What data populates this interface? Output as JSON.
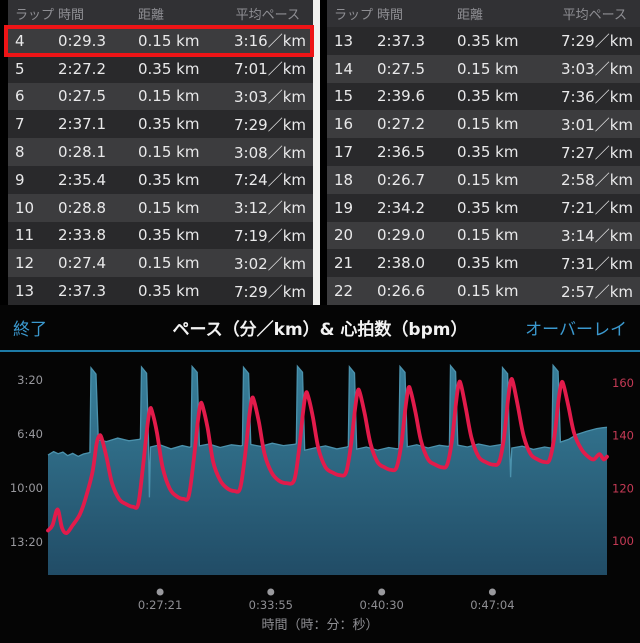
{
  "colors": {
    "accent_blue": "#3b99cf",
    "header_underline": "#1d7aa6",
    "highlight_red": "#ee1416",
    "area_top": "#38809b",
    "area_bottom": "#214c66",
    "area_edge": "#4b92ad",
    "hr_line": "#e21b4b",
    "pace_tick": "#98989d",
    "hr_tick": "#c43a55",
    "x_tick": "#8e8e93",
    "dot": "#99999d"
  },
  "tables": {
    "columns": [
      "ラップ",
      "時間",
      "距離",
      "平均ペース"
    ],
    "left": {
      "rows": [
        {
          "lap": "4",
          "time": "0:29.3",
          "distance": "0.15 km",
          "pace": "3:16／km",
          "highlight": "row"
        },
        {
          "lap": "5",
          "time": "2:27.2",
          "distance": "0.35 km",
          "pace": "7:01／km",
          "highlight": null
        },
        {
          "lap": "6",
          "time": "0:27.5",
          "distance": "0.15 km",
          "pace": "3:03／km",
          "highlight": "pace"
        },
        {
          "lap": "7",
          "time": "2:37.1",
          "distance": "0.35 km",
          "pace": "7:29／km",
          "highlight": null
        },
        {
          "lap": "8",
          "time": "0:28.1",
          "distance": "0.15 km",
          "pace": "3:08／km",
          "highlight": "pace"
        },
        {
          "lap": "9",
          "time": "2:35.4",
          "distance": "0.35 km",
          "pace": "7:24／km",
          "highlight": null
        },
        {
          "lap": "10",
          "time": "0:28.8",
          "distance": "0.15 km",
          "pace": "3:12／km",
          "highlight": "pace"
        },
        {
          "lap": "11",
          "time": "2:33.8",
          "distance": "0.35 km",
          "pace": "7:19／km",
          "highlight": null
        },
        {
          "lap": "12",
          "time": "0:27.4",
          "distance": "0.15 km",
          "pace": "3:02／km",
          "highlight": "pace"
        },
        {
          "lap": "13",
          "time": "2:37.3",
          "distance": "0.35 km",
          "pace": "7:29／km",
          "highlight": null
        }
      ]
    },
    "right": {
      "rows": [
        {
          "lap": "13",
          "time": "2:37.3",
          "distance": "0.35 km",
          "pace": "7:29／km",
          "highlight": null
        },
        {
          "lap": "14",
          "time": "0:27.5",
          "distance": "0.15 km",
          "pace": "3:03／km",
          "highlight": "pace"
        },
        {
          "lap": "15",
          "time": "2:39.6",
          "distance": "0.35 km",
          "pace": "7:36／km",
          "highlight": null
        },
        {
          "lap": "16",
          "time": "0:27.2",
          "distance": "0.15 km",
          "pace": "3:01／km",
          "highlight": "pace"
        },
        {
          "lap": "17",
          "time": "2:36.5",
          "distance": "0.35 km",
          "pace": "7:27／km",
          "highlight": null
        },
        {
          "lap": "18",
          "time": "0:26.7",
          "distance": "0.15 km",
          "pace": "2:58／km",
          "highlight": "pace"
        },
        {
          "lap": "19",
          "time": "2:34.2",
          "distance": "0.35 km",
          "pace": "7:21／km",
          "highlight": null
        },
        {
          "lap": "20",
          "time": "0:29.0",
          "distance": "0.15 km",
          "pace": "3:14／km",
          "highlight": "pace"
        },
        {
          "lap": "21",
          "time": "2:38.0",
          "distance": "0.35 km",
          "pace": "7:31／km",
          "highlight": null
        },
        {
          "lap": "22",
          "time": "0:26.6",
          "distance": "0.15 km",
          "pace": "2:57／km",
          "highlight": "pace"
        }
      ]
    }
  },
  "chart": {
    "exit_label": "終了",
    "overlay_label": "オーバーレイ",
    "title": "ペース（分／km）& 心拍数（bpm）"
  },
  "chart_data": {
    "type": "area",
    "title": "ペース（分／km）& 心拍数（bpm）",
    "x_axis": {
      "title": "時間（時：分：秒）",
      "tick_labels": [
        "0:27:21",
        "0:33:55",
        "0:40:30",
        "0:47:04"
      ],
      "tick_seconds": [
        1641,
        2035,
        2430,
        2824
      ],
      "range_seconds": [
        1242,
        3232
      ]
    },
    "pace_axis": {
      "side": "left",
      "inverted": true,
      "tick_labels": [
        "3:20",
        "6:40",
        "10:00",
        "13:20"
      ],
      "tick_seconds_per_km": [
        200,
        400,
        600,
        800
      ]
    },
    "hr_axis": {
      "side": "right",
      "tick_labels": [
        "160",
        "140",
        "120",
        "100"
      ],
      "tick_values": [
        160,
        140,
        120,
        100
      ]
    },
    "series": [
      {
        "name": "pace",
        "type": "area",
        "unit": "sec_per_km",
        "points": [
          [
            1242,
            478
          ],
          [
            1262,
            465
          ],
          [
            1278,
            473
          ],
          [
            1295,
            467
          ],
          [
            1312,
            480
          ],
          [
            1330,
            472
          ],
          [
            1350,
            483
          ],
          [
            1368,
            474
          ],
          [
            1386,
            470
          ],
          [
            1391,
            468
          ],
          [
            1395,
            155
          ],
          [
            1413,
            178
          ],
          [
            1421,
            421
          ],
          [
            1450,
            428
          ],
          [
            1490,
            415
          ],
          [
            1530,
            425
          ],
          [
            1566,
            420
          ],
          [
            1571,
            418
          ],
          [
            1575,
            152
          ],
          [
            1593,
            175
          ],
          [
            1600,
            440
          ],
          [
            1603,
            635
          ],
          [
            1607,
            448
          ],
          [
            1640,
            440
          ],
          [
            1680,
            455
          ],
          [
            1720,
            443
          ],
          [
            1746,
            449
          ],
          [
            1751,
            447
          ],
          [
            1755,
            150
          ],
          [
            1773,
            172
          ],
          [
            1781,
            444
          ],
          [
            1815,
            437
          ],
          [
            1855,
            450
          ],
          [
            1895,
            440
          ],
          [
            1929,
            444
          ],
          [
            1934,
            442
          ],
          [
            1938,
            153
          ],
          [
            1956,
            176
          ],
          [
            1964,
            439
          ],
          [
            2000,
            446
          ],
          [
            2040,
            434
          ],
          [
            2080,
            443
          ],
          [
            2121,
            438
          ],
          [
            2126,
            436
          ],
          [
            2130,
            149
          ],
          [
            2148,
            171
          ],
          [
            2156,
            460
          ],
          [
            2190,
            452
          ],
          [
            2230,
            444
          ],
          [
            2270,
            455
          ],
          [
            2306,
            448
          ],
          [
            2311,
            446
          ],
          [
            2315,
            151
          ],
          [
            2333,
            174
          ],
          [
            2341,
            456
          ],
          [
            2375,
            448
          ],
          [
            2415,
            460
          ],
          [
            2455,
            450
          ],
          [
            2486,
            455
          ],
          [
            2491,
            453
          ],
          [
            2495,
            150
          ],
          [
            2513,
            172
          ],
          [
            2521,
            447
          ],
          [
            2555,
            440
          ],
          [
            2595,
            452
          ],
          [
            2635,
            442
          ],
          [
            2666,
            446
          ],
          [
            2671,
            444
          ],
          [
            2675,
            147
          ],
          [
            2693,
            170
          ],
          [
            2701,
            441
          ],
          [
            2735,
            448
          ],
          [
            2775,
            437
          ],
          [
            2815,
            446
          ],
          [
            2851,
            440
          ],
          [
            2856,
            438
          ],
          [
            2860,
            154
          ],
          [
            2878,
            177
          ],
          [
            2886,
            470
          ],
          [
            2889,
            560
          ],
          [
            2893,
            452
          ],
          [
            2930,
            445
          ],
          [
            2970,
            457
          ],
          [
            3010,
            448
          ],
          [
            3031,
            452
          ],
          [
            3036,
            450
          ],
          [
            3040,
            146
          ],
          [
            3058,
            168
          ],
          [
            3066,
            430
          ],
          [
            3095,
            420
          ],
          [
            3125,
            402
          ],
          [
            3160,
            390
          ],
          [
            3195,
            380
          ],
          [
            3215,
            377
          ],
          [
            3232,
            375
          ]
        ]
      },
      {
        "name": "heart_rate",
        "type": "line",
        "unit": "bpm",
        "points": [
          [
            1242,
            104
          ],
          [
            1258,
            106
          ],
          [
            1276,
            112
          ],
          [
            1292,
            105
          ],
          [
            1308,
            103
          ],
          [
            1330,
            106
          ],
          [
            1355,
            110
          ],
          [
            1375,
            116
          ],
          [
            1400,
            126
          ],
          [
            1415,
            137
          ],
          [
            1425,
            140
          ],
          [
            1433,
            139
          ],
          [
            1450,
            132
          ],
          [
            1470,
            122
          ],
          [
            1495,
            116
          ],
          [
            1520,
            114
          ],
          [
            1545,
            113
          ],
          [
            1563,
            114
          ],
          [
            1580,
            128
          ],
          [
            1595,
            143
          ],
          [
            1605,
            150
          ],
          [
            1613,
            149
          ],
          [
            1630,
            141
          ],
          [
            1650,
            128
          ],
          [
            1675,
            120
          ],
          [
            1700,
            117
          ],
          [
            1725,
            116
          ],
          [
            1743,
            117
          ],
          [
            1760,
            130
          ],
          [
            1775,
            145
          ],
          [
            1785,
            152
          ],
          [
            1793,
            151
          ],
          [
            1810,
            143
          ],
          [
            1830,
            130
          ],
          [
            1855,
            123
          ],
          [
            1880,
            120
          ],
          [
            1905,
            119
          ],
          [
            1926,
            120
          ],
          [
            1943,
            132
          ],
          [
            1958,
            147
          ],
          [
            1968,
            154
          ],
          [
            1976,
            153
          ],
          [
            1993,
            145
          ],
          [
            2013,
            133
          ],
          [
            2038,
            126
          ],
          [
            2063,
            123
          ],
          [
            2090,
            122
          ],
          [
            2118,
            123
          ],
          [
            2135,
            134
          ],
          [
            2150,
            149
          ],
          [
            2160,
            156
          ],
          [
            2168,
            155
          ],
          [
            2185,
            147
          ],
          [
            2205,
            135
          ],
          [
            2230,
            128
          ],
          [
            2255,
            126
          ],
          [
            2280,
            125
          ],
          [
            2303,
            126
          ],
          [
            2320,
            136
          ],
          [
            2335,
            150
          ],
          [
            2345,
            157
          ],
          [
            2353,
            156
          ],
          [
            2370,
            148
          ],
          [
            2390,
            137
          ],
          [
            2415,
            130
          ],
          [
            2440,
            128
          ],
          [
            2463,
            127
          ],
          [
            2483,
            128
          ],
          [
            2500,
            137
          ],
          [
            2515,
            151
          ],
          [
            2525,
            158
          ],
          [
            2533,
            157
          ],
          [
            2550,
            149
          ],
          [
            2570,
            138
          ],
          [
            2595,
            131
          ],
          [
            2620,
            129
          ],
          [
            2645,
            128
          ],
          [
            2663,
            129
          ],
          [
            2680,
            138
          ],
          [
            2695,
            153
          ],
          [
            2705,
            160
          ],
          [
            2713,
            159
          ],
          [
            2730,
            150
          ],
          [
            2750,
            139
          ],
          [
            2775,
            132
          ],
          [
            2800,
            130
          ],
          [
            2825,
            129
          ],
          [
            2848,
            130
          ],
          [
            2865,
            139
          ],
          [
            2880,
            154
          ],
          [
            2890,
            161
          ],
          [
            2898,
            160
          ],
          [
            2915,
            151
          ],
          [
            2935,
            140
          ],
          [
            2960,
            133
          ],
          [
            2985,
            131
          ],
          [
            3010,
            130
          ],
          [
            3028,
            131
          ],
          [
            3045,
            140
          ],
          [
            3060,
            154
          ],
          [
            3070,
            160
          ],
          [
            3078,
            159
          ],
          [
            3095,
            151
          ],
          [
            3115,
            141
          ],
          [
            3140,
            135
          ],
          [
            3165,
            132
          ],
          [
            3185,
            131
          ],
          [
            3205,
            133
          ],
          [
            3220,
            131
          ],
          [
            3232,
            132
          ]
        ]
      }
    ]
  }
}
